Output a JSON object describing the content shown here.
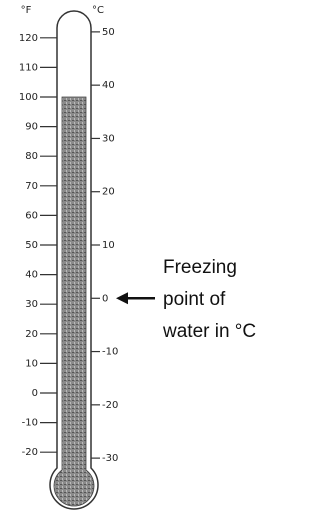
{
  "scales": {
    "fahrenheit": {
      "unit": "°F",
      "ticks": [
        120,
        110,
        100,
        90,
        80,
        70,
        60,
        50,
        40,
        30,
        20,
        10,
        0,
        -10,
        -20
      ]
    },
    "celsius": {
      "unit": "°C",
      "ticks": [
        50,
        40,
        30,
        20,
        10,
        0,
        -10,
        -20,
        -30
      ]
    }
  },
  "mercury_f": 100,
  "annotation": {
    "lines": [
      "Freezing",
      "point of",
      "water in °C"
    ],
    "points_to_c": 0
  }
}
